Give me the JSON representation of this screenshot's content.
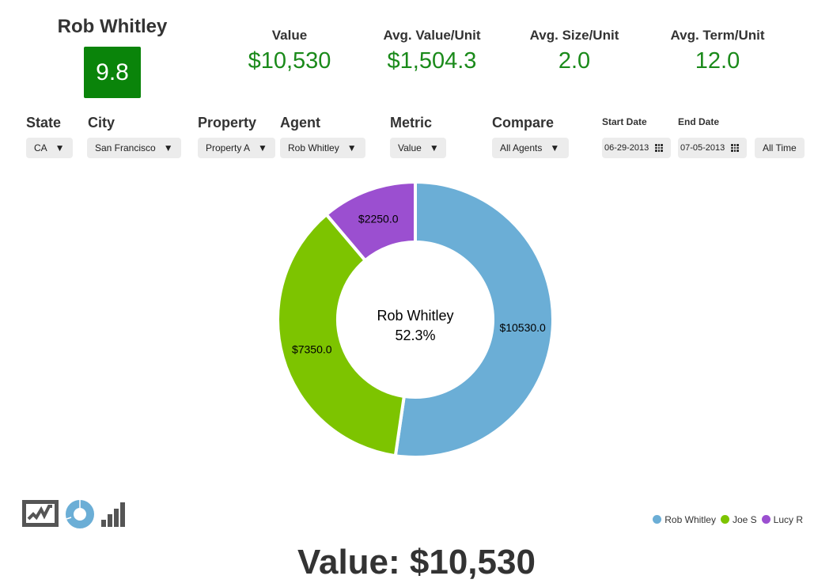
{
  "agent_name": "Rob Whitley",
  "score": "9.8",
  "stats": [
    {
      "label": "Value",
      "value": "$10,530"
    },
    {
      "label": "Avg. Value/Unit",
      "value": "$1,504.3"
    },
    {
      "label": "Avg. Size/Unit",
      "value": "2.0"
    },
    {
      "label": "Avg. Term/Unit",
      "value": "12.0"
    }
  ],
  "filters": {
    "state": {
      "label": "State",
      "value": "CA"
    },
    "city": {
      "label": "City",
      "value": "San Francisco"
    },
    "property": {
      "label": "Property",
      "value": "Property A"
    },
    "agent": {
      "label": "Agent",
      "value": "Rob Whitley"
    },
    "metric": {
      "label": "Metric",
      "value": "Value"
    },
    "compare": {
      "label": "Compare",
      "value": "All Agents"
    },
    "start_date": {
      "label": "Start Date",
      "value": "06-29-2013"
    },
    "end_date": {
      "label": "End Date",
      "value": "07-05-2013"
    },
    "all_time": "All Time"
  },
  "colors": {
    "green": "#1a8a1a",
    "blue": "#6baed6",
    "lime": "#7dc400",
    "purple": "#9b4fd0"
  },
  "chart_data": {
    "type": "pie",
    "donut": true,
    "center_label": "Rob Whitley",
    "center_pct": "52.3%",
    "slices": [
      {
        "name": "Rob Whitley",
        "value": 10530,
        "label": "$10530.0",
        "color": "#6baed6"
      },
      {
        "name": "Joe S",
        "value": 7350,
        "label": "$7350.0",
        "color": "#7dc400"
      },
      {
        "name": "Lucy R",
        "value": 2250,
        "label": "$2250.0",
        "color": "#9b4fd0"
      }
    ],
    "legend_position": "bottom-right"
  },
  "footer": {
    "total": "Value: $10,530"
  }
}
